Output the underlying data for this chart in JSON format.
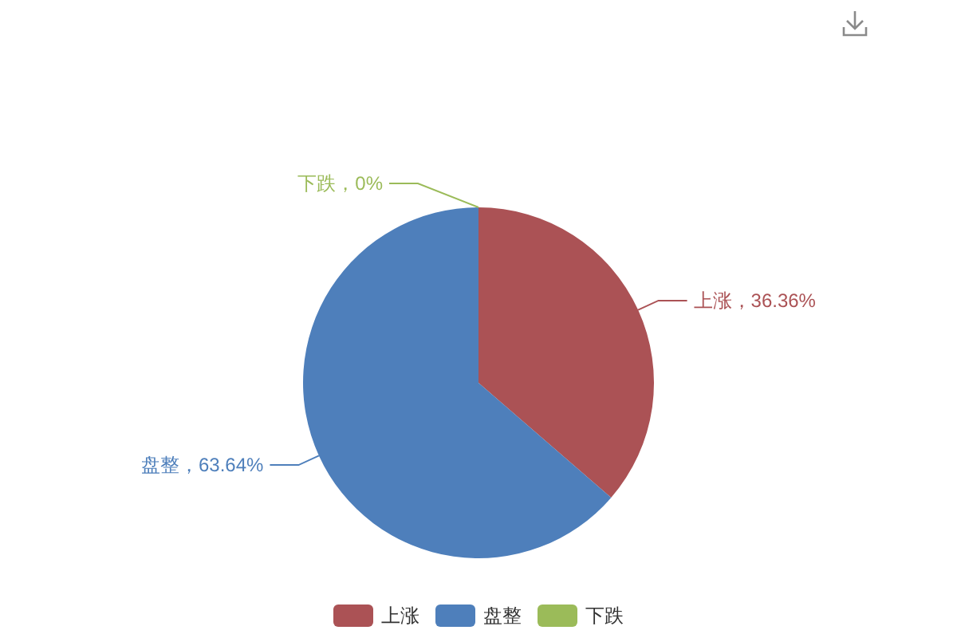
{
  "chart_data": {
    "type": "pie",
    "categories": [
      "上涨",
      "盘整",
      "下跌"
    ],
    "values": [
      36.36,
      63.64,
      0
    ],
    "colors": [
      "#ab5255",
      "#4e7fbb",
      "#9bbb59"
    ],
    "value_labels": [
      "上涨，36.36%",
      "盘整，63.64%",
      "下跌，0%"
    ],
    "legend": "bottom"
  }
}
